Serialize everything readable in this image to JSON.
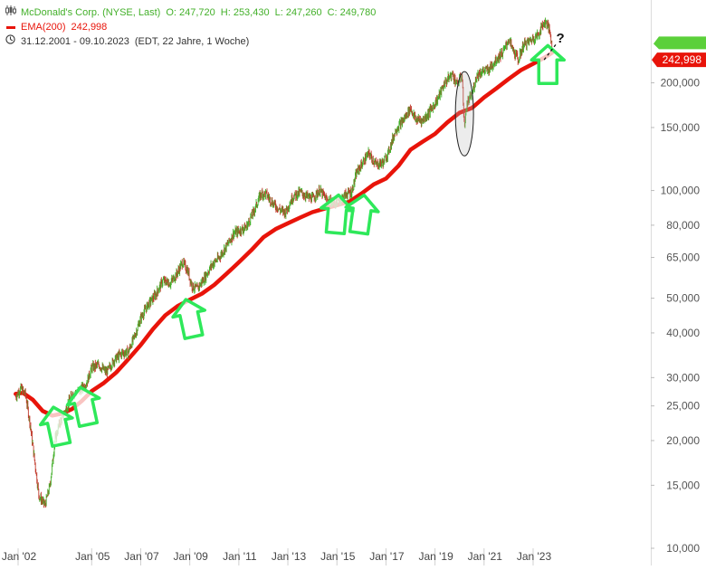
{
  "header": {
    "instrument": "McDonald's Corp. (NYSE, Last)",
    "open": "O: 247,720",
    "high": "H: 253,430",
    "low": "L: 247,260",
    "close": "C: 249,780",
    "ema_label": "EMA(200)",
    "ema_value": "242,998",
    "date_range": "31.12.2001 - 09.10.2023",
    "period_info": "(EDT, 22 Jahre, 1 Woche)"
  },
  "icons": {
    "chart_icon": "candlestick-icon",
    "clock_icon": "clock-icon"
  },
  "colors": {
    "price": "#43b02a",
    "price_down": "#c0392b",
    "ema": "#e8140a",
    "arrow": "#2ee85a",
    "price_tag": "#e8140a",
    "grid": "#e6e6e6"
  },
  "annotation": {
    "question_mark": "?"
  },
  "chart_data": {
    "type": "line",
    "scale": "log",
    "ylim": [
      10000,
      270000
    ],
    "yticks": [
      {
        "value": 10000,
        "label": "10,000"
      },
      {
        "value": 15000,
        "label": "15,000"
      },
      {
        "value": 20000,
        "label": "20,000"
      },
      {
        "value": 25000,
        "label": "25,000"
      },
      {
        "value": 30000,
        "label": "30,000"
      },
      {
        "value": 40000,
        "label": "40,000"
      },
      {
        "value": 50000,
        "label": "50,000"
      },
      {
        "value": 65000,
        "label": "65,000"
      },
      {
        "value": 80000,
        "label": "80,000"
      },
      {
        "value": 100000,
        "label": "100,000"
      },
      {
        "value": 150000,
        "label": "150,000"
      },
      {
        "value": 200000,
        "label": "200,000"
      }
    ],
    "xlim": [
      2001.9,
      2024.5
    ],
    "xticks": [
      {
        "value": 2002.0,
        "label": "Jan '02"
      },
      {
        "value": 2005.0,
        "label": "Jan '05"
      },
      {
        "value": 2007.0,
        "label": "Jan '07"
      },
      {
        "value": 2009.0,
        "label": "Jan '09"
      },
      {
        "value": 2011.0,
        "label": "Jan '11"
      },
      {
        "value": 2013.0,
        "label": "Jan '13"
      },
      {
        "value": 2015.0,
        "label": "Jan '15"
      },
      {
        "value": 2017.0,
        "label": "Jan '17"
      },
      {
        "value": 2019.0,
        "label": "Jan '19"
      },
      {
        "value": 2021.0,
        "label": "Jan '21"
      },
      {
        "value": 2023.0,
        "label": "Jan '23"
      }
    ],
    "series": [
      {
        "name": "McDonald's Corp. (NYSE, Last)",
        "style": "candles",
        "points": [
          [
            2001.9,
            26500
          ],
          [
            2002.1,
            28000
          ],
          [
            2002.3,
            27000
          ],
          [
            2002.5,
            22000
          ],
          [
            2002.7,
            17000
          ],
          [
            2002.85,
            14000
          ],
          [
            2003.1,
            13200
          ],
          [
            2003.3,
            15000
          ],
          [
            2003.5,
            20000
          ],
          [
            2003.7,
            22500
          ],
          [
            2003.9,
            24000
          ],
          [
            2004.2,
            27000
          ],
          [
            2004.5,
            27500
          ],
          [
            2004.8,
            29000
          ],
          [
            2005.0,
            32000
          ],
          [
            2005.3,
            32500
          ],
          [
            2005.6,
            31000
          ],
          [
            2005.9,
            33500
          ],
          [
            2006.2,
            35000
          ],
          [
            2006.5,
            35500
          ],
          [
            2006.8,
            40000
          ],
          [
            2007.0,
            44000
          ],
          [
            2007.3,
            48000
          ],
          [
            2007.6,
            51000
          ],
          [
            2007.9,
            56000
          ],
          [
            2008.2,
            55000
          ],
          [
            2008.5,
            59000
          ],
          [
            2008.7,
            63000
          ],
          [
            2008.9,
            60000
          ],
          [
            2009.1,
            54000
          ],
          [
            2009.3,
            53000
          ],
          [
            2009.6,
            57000
          ],
          [
            2009.9,
            62000
          ],
          [
            2010.2,
            65000
          ],
          [
            2010.5,
            70000
          ],
          [
            2010.8,
            76000
          ],
          [
            2011.0,
            77000
          ],
          [
            2011.3,
            79000
          ],
          [
            2011.6,
            87000
          ],
          [
            2011.9,
            98000
          ],
          [
            2012.1,
            98000
          ],
          [
            2012.4,
            92000
          ],
          [
            2012.7,
            88000
          ],
          [
            2012.9,
            87000
          ],
          [
            2013.2,
            96000
          ],
          [
            2013.5,
            99000
          ],
          [
            2013.8,
            96000
          ],
          [
            2014.0,
            95000
          ],
          [
            2014.3,
            100000
          ],
          [
            2014.6,
            94000
          ],
          [
            2014.9,
            92000
          ],
          [
            2015.1,
            94000
          ],
          [
            2015.4,
            98000
          ],
          [
            2015.6,
            99000
          ],
          [
            2015.8,
            112000
          ],
          [
            2016.0,
            118000
          ],
          [
            2016.3,
            127000
          ],
          [
            2016.6,
            118000
          ],
          [
            2016.9,
            120000
          ],
          [
            2017.1,
            128000
          ],
          [
            2017.4,
            148000
          ],
          [
            2017.7,
            157000
          ],
          [
            2018.0,
            170000
          ],
          [
            2018.2,
            158000
          ],
          [
            2018.5,
            157000
          ],
          [
            2018.8,
            167000
          ],
          [
            2019.1,
            180000
          ],
          [
            2019.4,
            200000
          ],
          [
            2019.7,
            212000
          ],
          [
            2019.9,
            198000
          ],
          [
            2020.1,
            210000
          ],
          [
            2020.2,
            150000
          ],
          [
            2020.3,
            175000
          ],
          [
            2020.5,
            185000
          ],
          [
            2020.7,
            210000
          ],
          [
            2020.9,
            215000
          ],
          [
            2021.2,
            218000
          ],
          [
            2021.5,
            233000
          ],
          [
            2021.8,
            245000
          ],
          [
            2022.0,
            265000
          ],
          [
            2022.2,
            245000
          ],
          [
            2022.4,
            232000
          ],
          [
            2022.6,
            255000
          ],
          [
            2022.8,
            260000
          ],
          [
            2023.0,
            266000
          ],
          [
            2023.2,
            272000
          ],
          [
            2023.4,
            292000
          ],
          [
            2023.55,
            295000
          ],
          [
            2023.7,
            275000
          ],
          [
            2023.78,
            249780
          ]
        ]
      },
      {
        "name": "EMA(200)",
        "style": "line",
        "points": [
          [
            2001.9,
            27000
          ],
          [
            2002.2,
            27200
          ],
          [
            2002.6,
            26000
          ],
          [
            2003.0,
            24200
          ],
          [
            2003.4,
            23500
          ],
          [
            2003.8,
            23800
          ],
          [
            2004.2,
            24500
          ],
          [
            2004.6,
            25800
          ],
          [
            2005.0,
            27500
          ],
          [
            2005.5,
            29000
          ],
          [
            2006.0,
            31000
          ],
          [
            2006.5,
            33800
          ],
          [
            2007.0,
            37000
          ],
          [
            2007.5,
            41000
          ],
          [
            2008.0,
            44800
          ],
          [
            2008.5,
            47500
          ],
          [
            2009.0,
            49500
          ],
          [
            2009.5,
            51500
          ],
          [
            2010.0,
            54500
          ],
          [
            2010.5,
            58500
          ],
          [
            2011.0,
            63000
          ],
          [
            2011.5,
            68000
          ],
          [
            2012.0,
            74000
          ],
          [
            2012.5,
            78000
          ],
          [
            2013.0,
            81000
          ],
          [
            2013.5,
            84000
          ],
          [
            2014.0,
            87000
          ],
          [
            2014.5,
            89000
          ],
          [
            2015.0,
            91000
          ],
          [
            2015.5,
            93000
          ],
          [
            2016.0,
            98000
          ],
          [
            2016.5,
            104000
          ],
          [
            2017.0,
            108000
          ],
          [
            2017.5,
            117000
          ],
          [
            2018.0,
            130000
          ],
          [
            2018.5,
            137000
          ],
          [
            2019.0,
            144000
          ],
          [
            2019.5,
            155000
          ],
          [
            2020.0,
            165000
          ],
          [
            2020.5,
            170000
          ],
          [
            2021.0,
            182000
          ],
          [
            2021.5,
            193000
          ],
          [
            2022.0,
            205000
          ],
          [
            2022.5,
            217000
          ],
          [
            2023.0,
            226000
          ],
          [
            2023.5,
            236000
          ],
          [
            2023.78,
            242998
          ]
        ]
      }
    ],
    "price_tags": {
      "upper": "",
      "lower": "242,998"
    },
    "annotations": {
      "up_arrows": [
        {
          "x": 2003.6,
          "y": 22000,
          "rot": -12
        },
        {
          "x": 2004.7,
          "y": 25000,
          "rot": -12
        },
        {
          "x": 2009.0,
          "y": 44000,
          "rot": -12
        },
        {
          "x": 2015.0,
          "y": 86000,
          "rot": 5
        },
        {
          "x": 2016.0,
          "y": 86000,
          "rot": 8
        },
        {
          "x": 2023.6,
          "y": 225000,
          "rot": 0
        }
      ],
      "ellipse": {
        "x": 2020.2,
        "y": 165000,
        "y_top": 215000,
        "y_bottom": 125000
      },
      "dashed_arrow_from": {
        "x": 2023.45,
        "y": 232000
      },
      "dashed_arrow_to": {
        "x": 2024.0,
        "y": 262000
      }
    }
  }
}
